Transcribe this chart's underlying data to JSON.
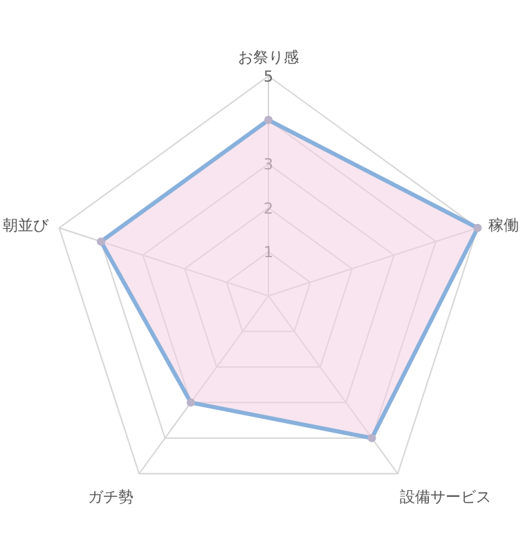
{
  "chart_data": {
    "type": "radar",
    "categories": [
      "お祭り感",
      "稼働",
      "設備サービス",
      "ガチ勢",
      "朝並び"
    ],
    "series": [
      {
        "color": "#88b0dc",
        "values": [
          4,
          5,
          4,
          3,
          4
        ]
      }
    ],
    "ylim": [
      0,
      5
    ],
    "yticks": [
      1,
      2,
      3,
      5
    ],
    "marker": "circle"
  }
}
